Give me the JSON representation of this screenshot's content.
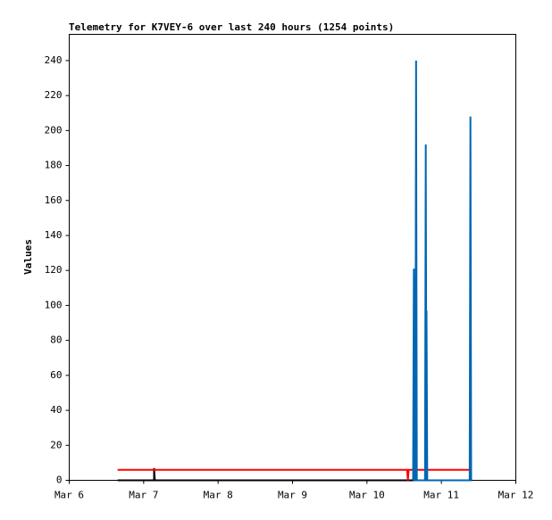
{
  "chart_data": {
    "type": "line",
    "title": "Telemetry for K7VEY-6 over last 240 hours (1254 points)",
    "y_label": "Values",
    "xlim": [
      6,
      12
    ],
    "xticks": [
      {
        "value": 6,
        "label": "Mar 6"
      },
      {
        "value": 7,
        "label": "Mar 7"
      },
      {
        "value": 8,
        "label": "Mar 8"
      },
      {
        "value": 9,
        "label": "Mar 9"
      },
      {
        "value": 10,
        "label": "Mar 10"
      },
      {
        "value": 11,
        "label": "Mar 11"
      },
      {
        "value": 12,
        "label": "Mar 12"
      }
    ],
    "ylim": [
      0,
      255
    ],
    "yticks": [
      0,
      20,
      40,
      60,
      80,
      100,
      120,
      140,
      160,
      180,
      200,
      220,
      240
    ],
    "grid": false,
    "series": [
      {
        "color": "#000000",
        "x": [
          6.65,
          7.14,
          7.14,
          7.15,
          11.4
        ],
        "values": [
          0,
          0,
          7,
          0,
          0
        ]
      },
      {
        "color": "#ff0000",
        "x": [
          6.65,
          10.54,
          10.55,
          10.56,
          11.4
        ],
        "values": [
          6,
          6,
          0,
          6,
          6
        ]
      },
      {
        "color": "#0066b3",
        "x": [
          10.62,
          10.63,
          10.64,
          10.65,
          10.66,
          10.67,
          10.78,
          10.79,
          10.8,
          10.8,
          10.81,
          11.38,
          11.39,
          11.4
        ],
        "values": [
          0,
          121,
          0,
          0,
          240,
          0,
          0,
          192,
          0,
          97,
          0,
          0,
          208,
          0
        ]
      }
    ]
  }
}
